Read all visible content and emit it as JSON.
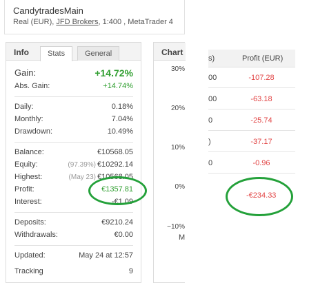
{
  "account": {
    "name": "CandytradesMain",
    "type": "Real (EUR),",
    "broker": "JFD Brokers",
    "details": ", 1:400 , MetaTrader 4"
  },
  "info_panel": {
    "title": "Info",
    "tabs": [
      "Stats",
      "General"
    ],
    "active_tab": "Stats",
    "gain": {
      "label": "Gain:",
      "value": "+14.72%"
    },
    "abs_gain": {
      "label": "Abs. Gain:",
      "value": "+14.74%"
    },
    "daily": {
      "label": "Daily:",
      "value": "0.18%"
    },
    "monthly": {
      "label": "Monthly:",
      "value": "7.04%"
    },
    "drawdown": {
      "label": "Drawdown:",
      "value": "10.49%"
    },
    "balance": {
      "label": "Balance:",
      "value": "€10568.05"
    },
    "equity": {
      "label": "Equity:",
      "sub": "(97.39%)",
      "value": "€10292.14"
    },
    "highest": {
      "label": "Highest:",
      "sub": "(May 23)",
      "value": "€10568.05"
    },
    "profit": {
      "label": "Profit:",
      "value": "€1357.81"
    },
    "interest": {
      "label": "Interest:",
      "value": "-€1.09"
    },
    "deposits": {
      "label": "Deposits:",
      "value": "€9210.24"
    },
    "withdrawals": {
      "label": "Withdrawals:",
      "value": "€0.00"
    },
    "updated": {
      "label": "Updated:",
      "value": "May 24 at 12:57"
    },
    "tracking": {
      "label": "Tracking",
      "value": "9"
    }
  },
  "chart_panel": {
    "title": "Chart",
    "y_ticks": [
      "30%",
      "20%",
      "10%",
      "0%",
      "−10%"
    ],
    "bottom_label": "M"
  },
  "profit_table": {
    "header_left": "s)",
    "header_right": "Profit (EUR)",
    "rows": [
      {
        "left": "00",
        "profit": "-107.28"
      },
      {
        "left": "00",
        "profit": "-63.18"
      },
      {
        "left": "0",
        "profit": "-25.74"
      },
      {
        "left": ")",
        "profit": "-37.17"
      },
      {
        "left": "0",
        "profit": "-0.96"
      }
    ],
    "total": "-€234.33"
  },
  "colors": {
    "gain_green": "#2f9e2f",
    "loss_red": "#e24545",
    "annotation_green": "#24a13a"
  }
}
